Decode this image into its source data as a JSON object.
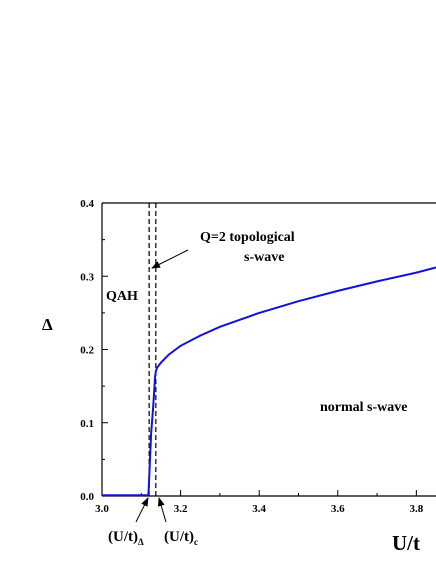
{
  "chart_data": {
    "type": "line",
    "xlabel": "U/t",
    "ylabel": "Δ",
    "xlim": [
      3.0,
      3.85
    ],
    "ylim": [
      0.0,
      0.4
    ],
    "x_ticks": [
      3.0,
      3.2,
      3.4,
      3.6,
      3.8
    ],
    "x_tick_labels": [
      "3.0",
      "3.2",
      "3.4",
      "3.6",
      "3.8"
    ],
    "y_ticks": [
      0.0,
      0.1,
      0.2,
      0.3,
      0.4
    ],
    "y_tick_labels": [
      "0.0",
      "0.1",
      "0.2",
      "0.3",
      "0.4"
    ],
    "grid": false,
    "line_color": "#1010e0",
    "series": [
      {
        "x": [
          3.0,
          3.05,
          3.1,
          3.118,
          3.12,
          3.125,
          3.13,
          3.133,
          3.135,
          3.137,
          3.14,
          3.15,
          3.17,
          3.2,
          3.25,
          3.3,
          3.4,
          3.5,
          3.6,
          3.7,
          3.8,
          3.85
        ],
        "y": [
          0.001,
          0.001,
          0.001,
          0.001,
          0.025,
          0.085,
          0.12,
          0.145,
          0.162,
          0.17,
          0.175,
          0.182,
          0.193,
          0.205,
          0.219,
          0.231,
          0.25,
          0.266,
          0.28,
          0.293,
          0.305,
          0.312
        ]
      }
    ],
    "vlines": [
      3.12,
      3.137
    ],
    "annotations": {
      "top": [
        "Q=2 topological",
        "s-wave"
      ],
      "left": "QAH",
      "right": "normal s-wave",
      "crit_delta_base": "(U/t)",
      "crit_delta_sub": "Δ",
      "crit_c_base": "(U/t)",
      "crit_c_sub": "c"
    }
  }
}
